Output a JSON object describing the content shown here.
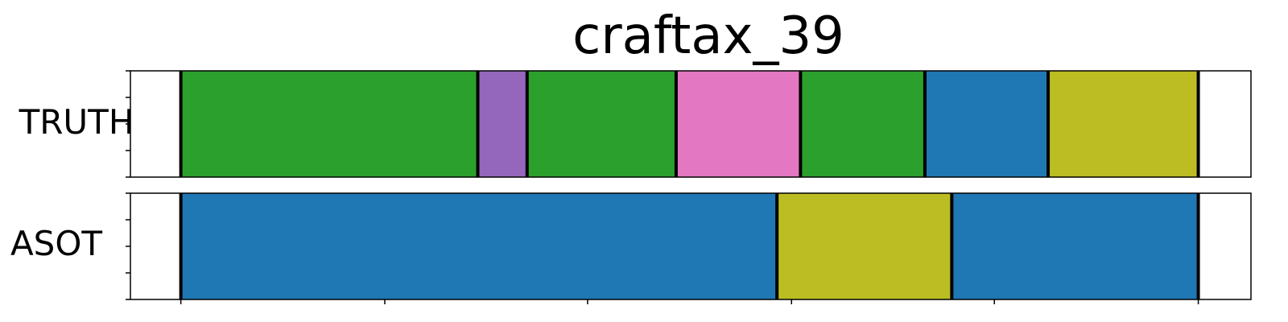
{
  "chart_data": {
    "type": "bar",
    "title": "craftax_39",
    "x_range": [
      0,
      1
    ],
    "rows": [
      {
        "label": "TRUTH",
        "segments": [
          {
            "start": 0.045,
            "end": 0.31,
            "color": "#2ca02c"
          },
          {
            "start": 0.31,
            "end": 0.354,
            "color": "#9467bd"
          },
          {
            "start": 0.354,
            "end": 0.487,
            "color": "#2ca02c"
          },
          {
            "start": 0.487,
            "end": 0.598,
            "color": "#e377c2"
          },
          {
            "start": 0.598,
            "end": 0.709,
            "color": "#2ca02c"
          },
          {
            "start": 0.709,
            "end": 0.819,
            "color": "#1f77b4"
          },
          {
            "start": 0.819,
            "end": 0.953,
            "color": "#bcbd22"
          }
        ]
      },
      {
        "label": "ASOT",
        "segments": [
          {
            "start": 0.045,
            "end": 0.577,
            "color": "#1f77b4"
          },
          {
            "start": 0.577,
            "end": 0.733,
            "color": "#bcbd22"
          },
          {
            "start": 0.733,
            "end": 0.953,
            "color": "#1f77b4"
          }
        ]
      }
    ],
    "x_ticks": [
      0.045,
      0.227,
      0.408,
      0.59,
      0.771,
      0.953
    ],
    "y_ticks": [
      0,
      0.25,
      0.5,
      0.75,
      1.0
    ]
  }
}
